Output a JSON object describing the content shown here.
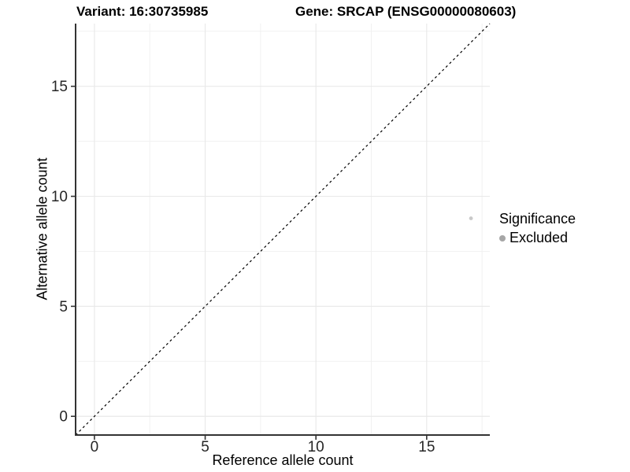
{
  "chart_data": {
    "type": "scatter",
    "title_left": "Variant: 16:30735985",
    "title_right": "Gene: SRCAP (ENSG00000080603)",
    "xlabel": "Reference allele count",
    "ylabel": "Alternative allele count",
    "xlim": [
      -0.85,
      17.85
    ],
    "ylim": [
      -0.85,
      17.85
    ],
    "x_ticks": [
      0,
      5,
      10,
      15
    ],
    "y_ticks": [
      0,
      5,
      10,
      15
    ],
    "x_minor_gridlines": [
      2.5,
      7.5,
      12.5,
      17.5
    ],
    "y_minor_gridlines": [
      2.5,
      7.5,
      12.5,
      17.5
    ],
    "grid": true,
    "points": [
      {
        "x": 17,
        "y": 9,
        "series": "Excluded"
      }
    ],
    "identity_line": {
      "slope": 1,
      "intercept": 0,
      "style": "dashed"
    },
    "legend": {
      "position": "right",
      "title": "Significance",
      "items": [
        {
          "label": "Excluded",
          "color": "#a6a6a6"
        }
      ]
    }
  },
  "colors": {
    "point": "#c9c9c9",
    "legend_dot": "#a6a6a6",
    "grid_major": "#e9e9e9",
    "grid_minor": "#f1f1f1",
    "axis_line": "#333333",
    "tick_label": "#262626",
    "dashed_line": "#000000",
    "background": "#ffffff"
  }
}
